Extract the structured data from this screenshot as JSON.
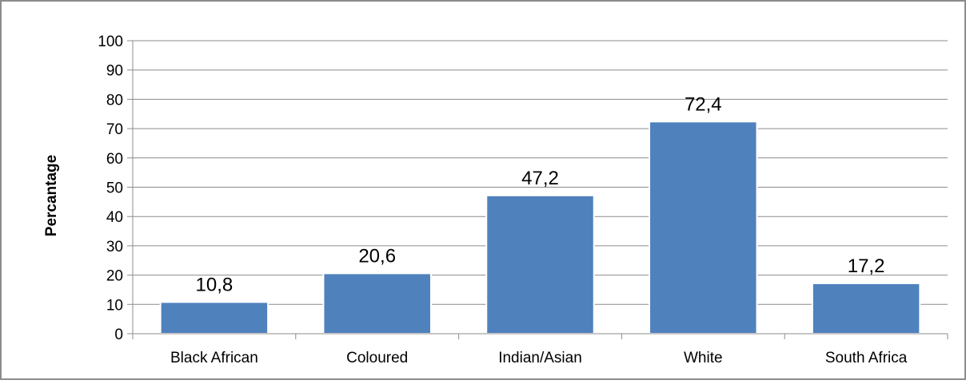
{
  "chart_data": {
    "type": "bar",
    "title": "",
    "xlabel": "",
    "ylabel": "Percantage",
    "categories": [
      "Black African",
      "Coloured",
      "Indian/Asian",
      "White",
      "South Africa"
    ],
    "values": [
      10.8,
      20.6,
      47.2,
      72.4,
      17.2
    ],
    "value_labels": [
      "10,8",
      "20,6",
      "47,2",
      "72,4",
      "17,2"
    ],
    "yticks": [
      "0",
      "10",
      "20",
      "30",
      "40",
      "50",
      "60",
      "70",
      "80",
      "90",
      "100"
    ],
    "ylim": [
      0,
      100
    ],
    "grid": true,
    "legend": "none",
    "bar_color": "#4f81bd",
    "frame_color": "#8c8c8c",
    "grid_color": "#8c8c8c"
  }
}
